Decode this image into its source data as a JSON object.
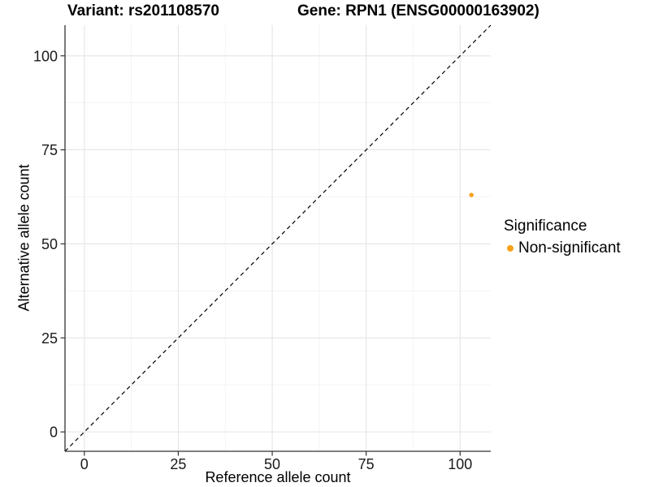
{
  "title": {
    "variant": "Variant: rs201108570",
    "gene": "Gene: RPN1 (ENSG00000163902)"
  },
  "legend": {
    "title": "Significance",
    "items": [
      {
        "label": "Non-significant",
        "color": "#F9A11B"
      }
    ]
  },
  "colors": {
    "background": "#ffffff",
    "grid_major": "#e5e5e5",
    "grid_minor": "#f2f2f2",
    "axis_line": "#333333",
    "tick_mark": "#333333",
    "tick_label": "#1a1a1a",
    "reference_line": "#000000",
    "point": "#F9A11B"
  },
  "chart_data": {
    "type": "scatter",
    "title": "Variant: rs201108570    Gene: RPN1 (ENSG00000163902)",
    "xlabel": "Reference allele count",
    "ylabel": "Alternative allele count",
    "xlim": [
      -5.15,
      108.15
    ],
    "ylim": [
      -5.15,
      108.15
    ],
    "x_ticks": [
      0,
      25,
      50,
      75,
      100
    ],
    "y_ticks": [
      0,
      25,
      50,
      75,
      100
    ],
    "x_minor_ticks": [
      12.5,
      37.5,
      62.5,
      87.5
    ],
    "y_minor_ticks": [
      12.5,
      37.5,
      62.5,
      87.5
    ],
    "grid": true,
    "legend_position": "right",
    "reference_line": {
      "type": "identity",
      "style": "dashed",
      "from": -5.15,
      "to": 108.15
    },
    "series": [
      {
        "name": "Non-significant",
        "color": "#F9A11B",
        "points": [
          {
            "x": 103,
            "y": 63
          }
        ]
      }
    ]
  }
}
